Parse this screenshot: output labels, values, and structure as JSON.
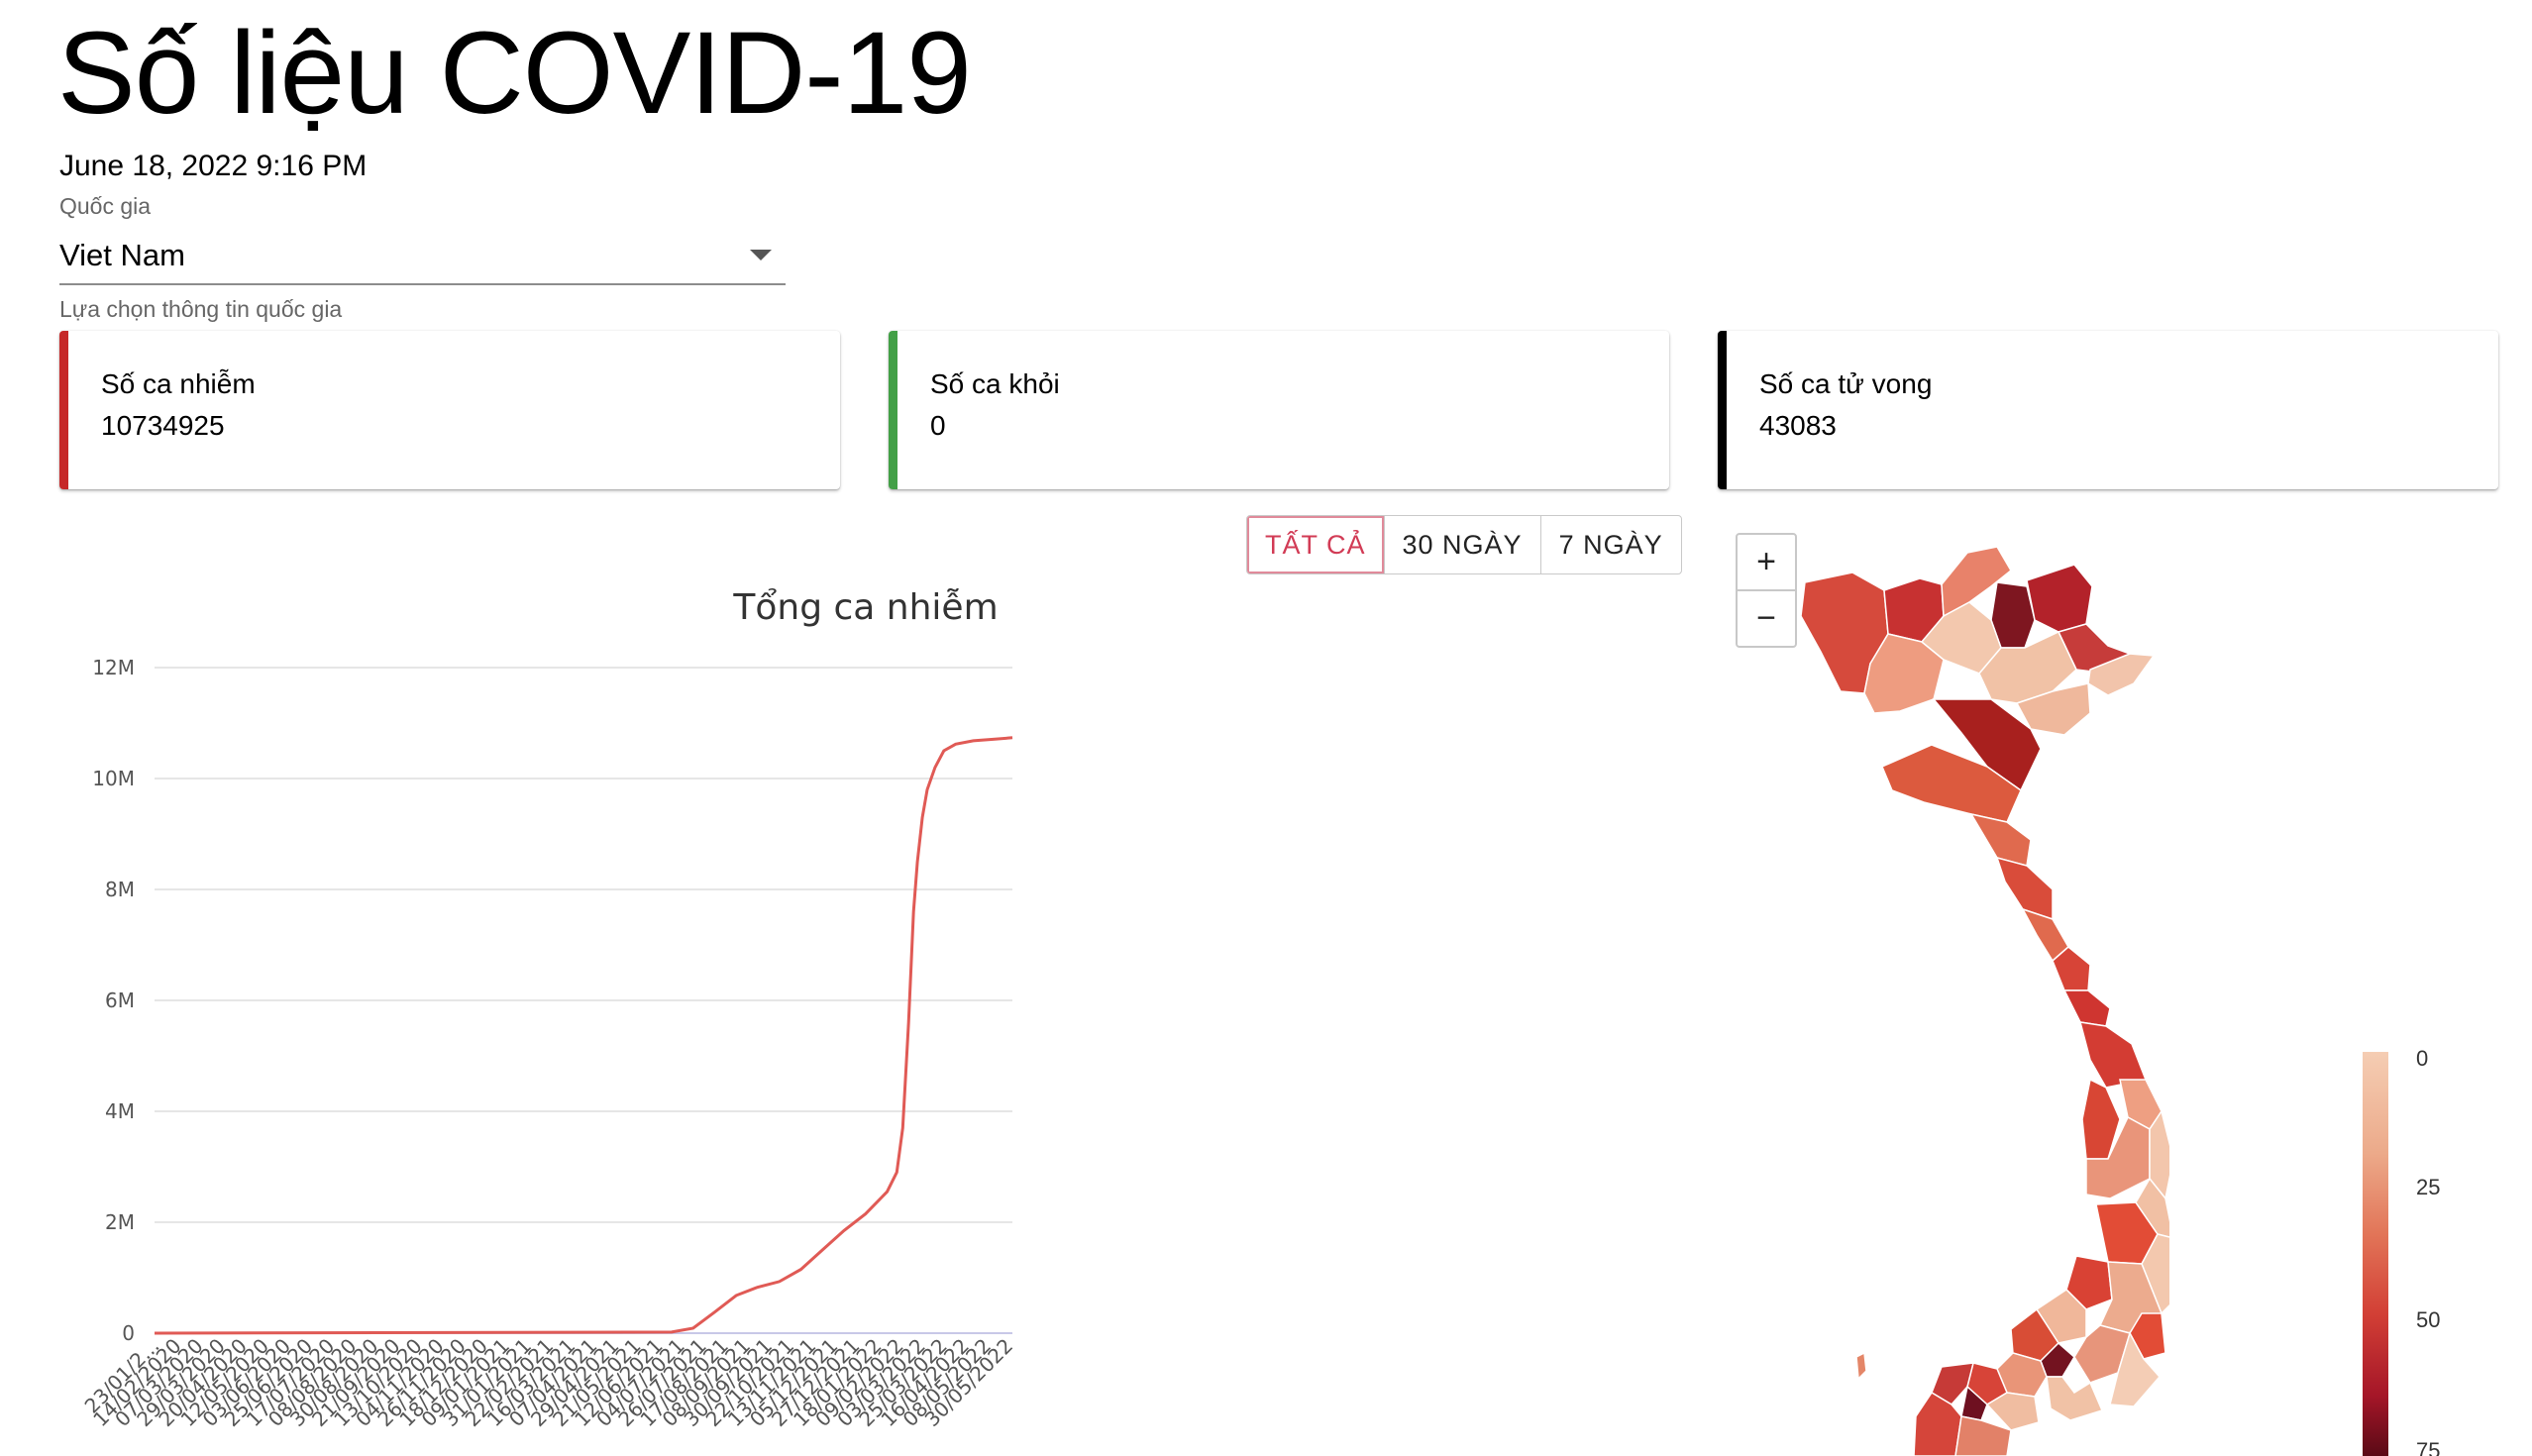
{
  "header": {
    "title": "Số liệu COVID-19",
    "datetime": "June 18, 2022 9:16 PM"
  },
  "country": {
    "label": "Quốc gia",
    "selected": "Viet Nam",
    "helper": "Lựa chọn thông tin quốc gia"
  },
  "cards": {
    "infected": {
      "label": "Số ca nhiễm",
      "value": "10734925",
      "color": "#c62828"
    },
    "recovered": {
      "label": "Số ca khỏi",
      "value": "0",
      "color": "#43a047"
    },
    "deaths": {
      "label": "Số ca tử vong",
      "value": "43083",
      "color": "#000000"
    }
  },
  "range_buttons": [
    {
      "label": "TẤT CẢ",
      "active": true
    },
    {
      "label": "30 NGÀY",
      "active": false
    },
    {
      "label": "7 NGÀY",
      "active": false
    }
  ],
  "map": {
    "zoom_in": "+",
    "zoom_out": "−",
    "legend_ticks": [
      "0",
      "25",
      "50",
      "75"
    ]
  },
  "chart_data": {
    "type": "line",
    "title": "Tổng ca nhiễm",
    "xlabel": "",
    "ylabel": "",
    "ylim": [
      0,
      12000000
    ],
    "y_ticks": [
      "0",
      "2M",
      "4M",
      "6M",
      "8M",
      "10M",
      "12M"
    ],
    "x_ticks": [
      "23/01/2...",
      "14/02/2020",
      "07/03/2020",
      "29/03/2020",
      "20/04/2020",
      "12/05/2020",
      "03/06/2020",
      "25/06/2020",
      "17/07/2020",
      "08/08/2020",
      "30/08/2020",
      "21/09/2020",
      "13/10/2020",
      "04/11/2020",
      "26/11/2020",
      "18/12/2020",
      "09/01/2021",
      "31/01/2021",
      "22/02/2021",
      "16/03/2021",
      "07/04/2021",
      "29/04/2021",
      "21/05/2021",
      "12/06/2021",
      "04/07/2021",
      "26/07/2021",
      "17/08/2021",
      "08/09/2021",
      "30/09/2021",
      "22/10/2021",
      "13/11/2021",
      "05/12/2021",
      "27/12/2021",
      "18/01/2022",
      "09/02/2022",
      "03/03/2022",
      "25/03/2022",
      "16/04/2022",
      "08/05/2022",
      "30/05/2022"
    ],
    "color": "#e05a55",
    "series": [
      {
        "x": [
          "23/01/2020",
          "04/07/2021",
          "26/07/2021",
          "17/08/2021",
          "08/09/2021",
          "30/09/2021",
          "22/10/2021",
          "13/11/2021",
          "05/12/2021",
          "27/12/2021",
          "18/01/2022",
          "09/02/2022",
          "19/02/2022",
          "25/02/2022",
          "03/03/2022",
          "08/03/2022",
          "12/03/2022",
          "17/03/2022",
          "22/03/2022",
          "30/03/2022",
          "08/04/2022",
          "20/04/2022",
          "08/05/2022",
          "30/05/2022",
          "17/06/2022"
        ],
        "values": [
          0,
          20000,
          90000,
          380000,
          680000,
          830000,
          930000,
          1150000,
          1500000,
          1850000,
          2150000,
          2550000,
          2900000,
          3700000,
          5600000,
          7600000,
          8500000,
          9300000,
          9800000,
          10200000,
          10500000,
          10620000,
          10680000,
          10710000,
          10734925
        ]
      }
    ]
  }
}
